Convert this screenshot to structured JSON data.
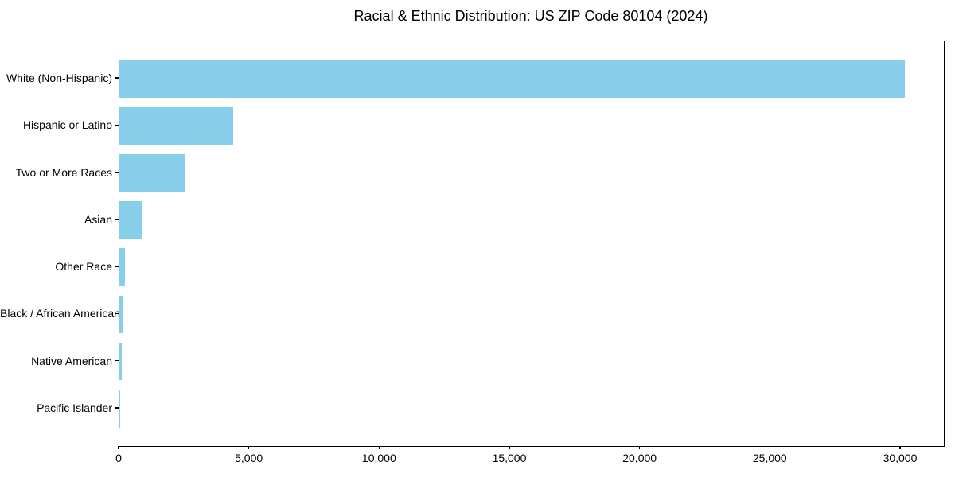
{
  "chart_data": {
    "type": "bar",
    "orientation": "horizontal",
    "title": "Racial & Ethnic Distribution: US ZIP Code 80104 (2024)",
    "xlabel": "",
    "ylabel": "",
    "categories": [
      "White (Non-Hispanic)",
      "Hispanic or Latino",
      "Two or More Races",
      "Asian",
      "Other Race",
      "Black / African American",
      "Native American",
      "Pacific Islander"
    ],
    "values": [
      30150,
      4370,
      2500,
      860,
      220,
      150,
      90,
      15
    ],
    "xlim": [
      0,
      31650
    ],
    "xticks": [
      0,
      5000,
      10000,
      15000,
      20000,
      25000,
      30000
    ],
    "xtick_labels": [
      "0",
      "5,000",
      "10,000",
      "15,000",
      "20,000",
      "25,000",
      "30,000"
    ],
    "bar_color": "#87CEEB",
    "grid": false,
    "legend": null
  }
}
